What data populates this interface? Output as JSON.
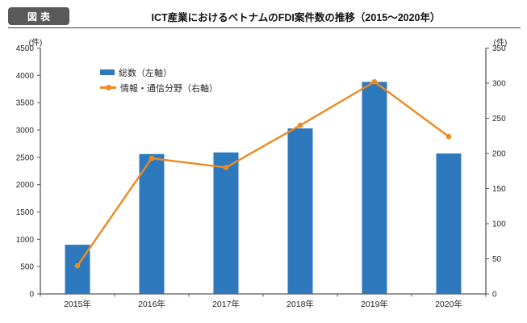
{
  "header": {
    "badge": "図表",
    "title": "ICT産業におけるベトナムのFDI案件数の推移（2015～2020年）"
  },
  "chart_data": {
    "type": "combo-bar-line-dual-axis",
    "title": "ICT産業におけるベトナムのFDI案件数の推移（2015～2020年）",
    "categories": [
      "2015年",
      "2016年",
      "2017年",
      "2018年",
      "2019年",
      "2020年"
    ],
    "series": [
      {
        "name": "総数（左軸）",
        "type": "bar",
        "axis": "left",
        "color": "#2e79be",
        "values": [
          900,
          2560,
          2590,
          3030,
          3880,
          2570
        ]
      },
      {
        "name": "情報・通信分野（右軸）",
        "type": "line",
        "axis": "right",
        "color": "#ee8a1f",
        "values": [
          40,
          193,
          180,
          240,
          302,
          224
        ]
      }
    ],
    "left_axis": {
      "unit": "(件)",
      "min": 0,
      "max": 4500,
      "step": 500
    },
    "right_axis": {
      "unit": "(件)",
      "min": 0,
      "max": 350,
      "step": 50
    },
    "grid": "off",
    "legend_position": "inside-top-left",
    "axis_color": "#595959",
    "label_color": "#262626"
  }
}
